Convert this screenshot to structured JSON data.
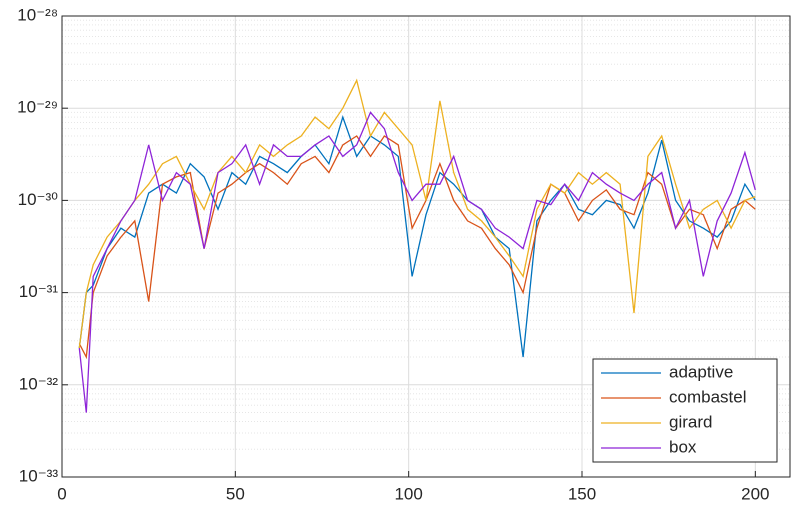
{
  "chart_data": {
    "type": "line",
    "log_y": true,
    "grid": true,
    "minor_grid": true,
    "legend": "southeast",
    "x": [
      5,
      7,
      9,
      13,
      17,
      21,
      25,
      29,
      33,
      37,
      41,
      45,
      49,
      53,
      57,
      61,
      65,
      69,
      73,
      77,
      81,
      85,
      89,
      93,
      97,
      101,
      105,
      109,
      113,
      117,
      121,
      125,
      129,
      133,
      137,
      141,
      145,
      149,
      153,
      157,
      161,
      165,
      169,
      173,
      177,
      181,
      185,
      189,
      193,
      197,
      200
    ],
    "xlim": [
      0,
      210
    ],
    "xticks": [
      0,
      50,
      100,
      150,
      200
    ],
    "ylim": [
      1e-33,
      1e-28
    ],
    "yticks": [
      {
        "value": 1e-33,
        "label": "10⁻³³"
      },
      {
        "value": 1e-32,
        "label": "10⁻³²"
      },
      {
        "value": 1e-31,
        "label": "10⁻³¹"
      },
      {
        "value": 1e-30,
        "label": "10⁻³⁰"
      },
      {
        "value": 1e-29,
        "label": "10⁻²⁹"
      },
      {
        "value": 1e-28,
        "label": "10⁻²⁸"
      }
    ],
    "series": [
      {
        "name": "adaptive",
        "color": "#0072bd",
        "values": [
          2.5e-32,
          1e-31,
          1.2e-31,
          3e-31,
          5e-31,
          4e-31,
          1.2e-30,
          1.5e-30,
          1.2e-30,
          2.5e-30,
          1.8e-30,
          8e-31,
          2e-30,
          1.5e-30,
          3e-30,
          2.5e-30,
          2e-30,
          3e-30,
          4e-30,
          2.5e-30,
          8e-30,
          3e-30,
          5e-30,
          4e-30,
          3e-30,
          1.5e-31,
          7e-31,
          2e-30,
          1.5e-30,
          1e-30,
          8e-31,
          4e-31,
          3e-31,
          2e-32,
          6e-31,
          1e-30,
          1.5e-30,
          8e-31,
          7e-31,
          1e-30,
          9e-31,
          5e-31,
          1.2e-30,
          4.5e-30,
          1e-30,
          6e-31,
          5e-31,
          4e-31,
          6e-31,
          1.5e-30,
          1e-30
        ]
      },
      {
        "name": "combastel",
        "color": "#d95319",
        "values": [
          2.8e-32,
          2e-32,
          1e-31,
          2.5e-31,
          4e-31,
          6e-31,
          8e-32,
          1.5e-30,
          1.8e-30,
          2e-30,
          3e-31,
          1.2e-30,
          1.5e-30,
          2e-30,
          2.5e-30,
          2e-30,
          1.5e-30,
          2.5e-30,
          3e-30,
          2e-30,
          4e-30,
          5e-30,
          3e-30,
          5e-30,
          4e-30,
          5e-31,
          1e-30,
          2.5e-30,
          1e-30,
          6e-31,
          5e-31,
          3e-31,
          2e-31,
          1e-31,
          5e-31,
          1.5e-30,
          1.2e-30,
          6e-31,
          1e-30,
          1.3e-30,
          8e-31,
          7e-31,
          2e-30,
          1.5e-30,
          5e-31,
          8e-31,
          7e-31,
          3e-31,
          8e-31,
          1e-30,
          8e-31
        ]
      },
      {
        "name": "girard",
        "color": "#edb120",
        "values": [
          2.5e-32,
          1e-31,
          2e-31,
          4e-31,
          6e-31,
          1e-30,
          1.5e-30,
          2.5e-30,
          3e-30,
          1.5e-30,
          8e-31,
          2e-30,
          3e-30,
          2e-30,
          4e-30,
          3e-30,
          4e-30,
          5e-30,
          8e-30,
          6e-30,
          1e-29,
          2e-29,
          5e-30,
          9e-30,
          6e-30,
          4e-30,
          1e-30,
          1.2e-29,
          2e-30,
          8e-31,
          6e-31,
          4e-31,
          2.5e-31,
          1.5e-31,
          8e-31,
          1.5e-30,
          1.2e-30,
          2e-30,
          1.5e-30,
          2e-30,
          1.5e-30,
          6e-32,
          3e-30,
          5e-30,
          1.5e-30,
          5e-31,
          8e-31,
          1e-30,
          5e-31,
          1e-30,
          1.1e-30
        ]
      },
      {
        "name": "box",
        "color": "#8e24d8",
        "values": [
          2.5e-32,
          5e-33,
          1.5e-31,
          3e-31,
          6e-31,
          1e-30,
          4e-30,
          1e-30,
          2e-30,
          1.5e-30,
          3e-31,
          2e-30,
          2.5e-30,
          4e-30,
          1.5e-30,
          4e-30,
          3e-30,
          3e-30,
          4e-30,
          5e-30,
          3e-30,
          4e-30,
          9e-30,
          6e-30,
          2e-30,
          1e-30,
          1.5e-30,
          1.5e-30,
          3e-30,
          1e-30,
          8e-31,
          5e-31,
          4e-31,
          3e-31,
          1e-30,
          9e-31,
          1.5e-30,
          1e-30,
          2e-30,
          1.5e-30,
          1.2e-30,
          1e-30,
          1.5e-30,
          2e-30,
          5e-31,
          1e-30,
          1.5e-31,
          6e-31,
          1.2e-30,
          3.3e-30,
          1.3e-30
        ]
      }
    ]
  }
}
